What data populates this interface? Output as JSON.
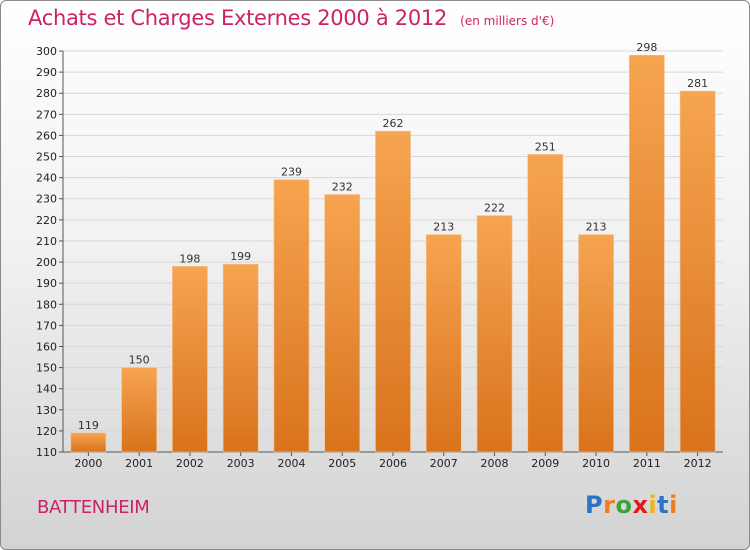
{
  "title": "Achats et Charges Externes 2000 à 2012",
  "unit": "(en milliers d'€)",
  "commune": "BATTENHEIM",
  "logo": {
    "letters": [
      {
        "ch": "P",
        "color": "#2a73c6"
      },
      {
        "ch": "r",
        "color": "#f07c1e"
      },
      {
        "ch": "o",
        "color": "#3aa33a"
      },
      {
        "ch": "x",
        "color": "#e8161a"
      },
      {
        "ch": "i",
        "color": "#f3b30f"
      },
      {
        "ch": "t",
        "color": "#2a73c6"
      },
      {
        "ch": "i",
        "color": "#f07c1e"
      }
    ]
  },
  "colors": {
    "bar_light": "#f6a451",
    "bar_dark": "#d9731c",
    "title": "#cc2266",
    "grid": "#d8d8d8"
  },
  "chart_data": {
    "type": "bar",
    "title": "Achats et Charges Externes 2000 à 2012",
    "subtitle": "(en milliers d'€)",
    "categories": [
      "2000",
      "2001",
      "2002",
      "2003",
      "2004",
      "2005",
      "2006",
      "2007",
      "2008",
      "2009",
      "2010",
      "2011",
      "2012"
    ],
    "values": [
      119,
      150,
      198,
      199,
      239,
      232,
      262,
      213,
      222,
      251,
      213,
      298,
      281
    ],
    "ylim": [
      110,
      300
    ],
    "yticks": [
      110,
      120,
      130,
      140,
      150,
      160,
      170,
      180,
      190,
      200,
      210,
      220,
      230,
      240,
      250,
      260,
      270,
      280,
      290,
      300
    ],
    "xlabel": "",
    "ylabel": "",
    "grid": true,
    "data_labels": true
  }
}
